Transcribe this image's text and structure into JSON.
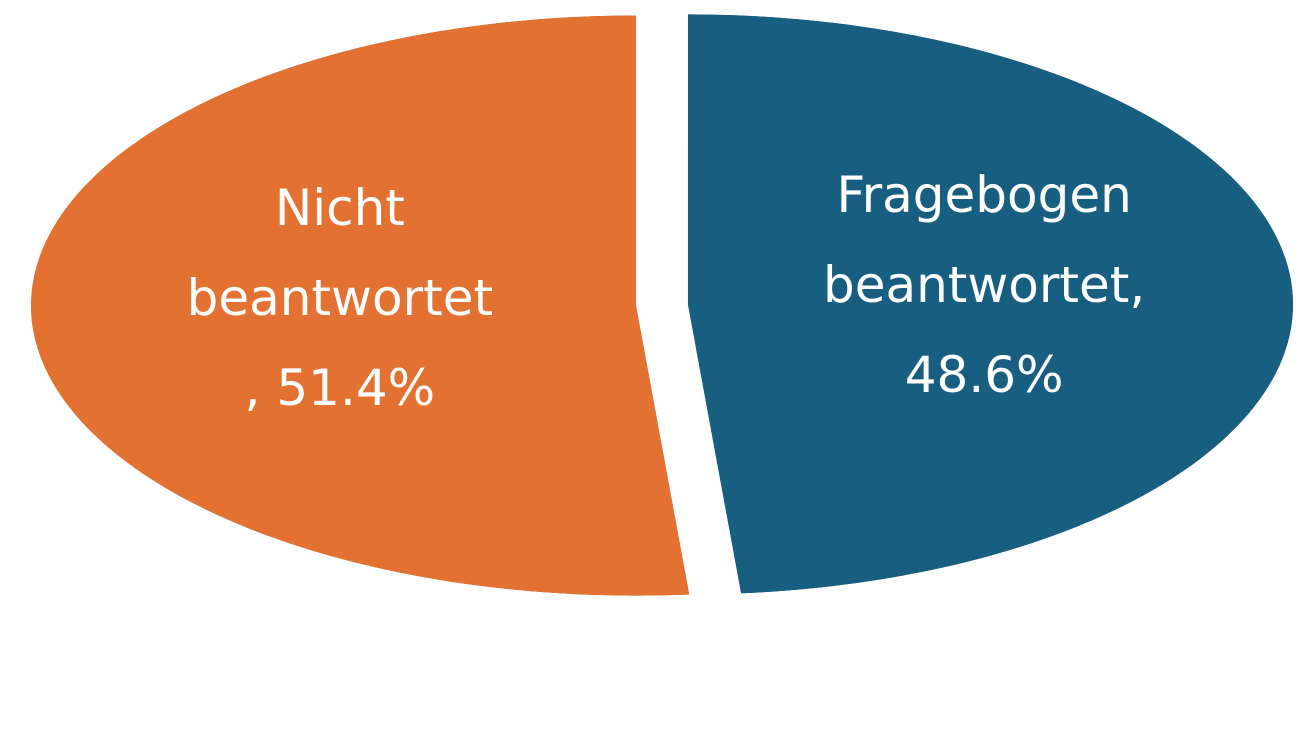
{
  "chart_data": {
    "type": "pie",
    "values": [
      48.6,
      51.4
    ],
    "colors": [
      "#175e80",
      "#e37232"
    ],
    "value_labels": [
      [
        "Fragebogen",
        "beantwortet,",
        "48.6%"
      ],
      [
        "Nicht",
        "beantwortet",
        ", 51.4%"
      ]
    ]
  }
}
